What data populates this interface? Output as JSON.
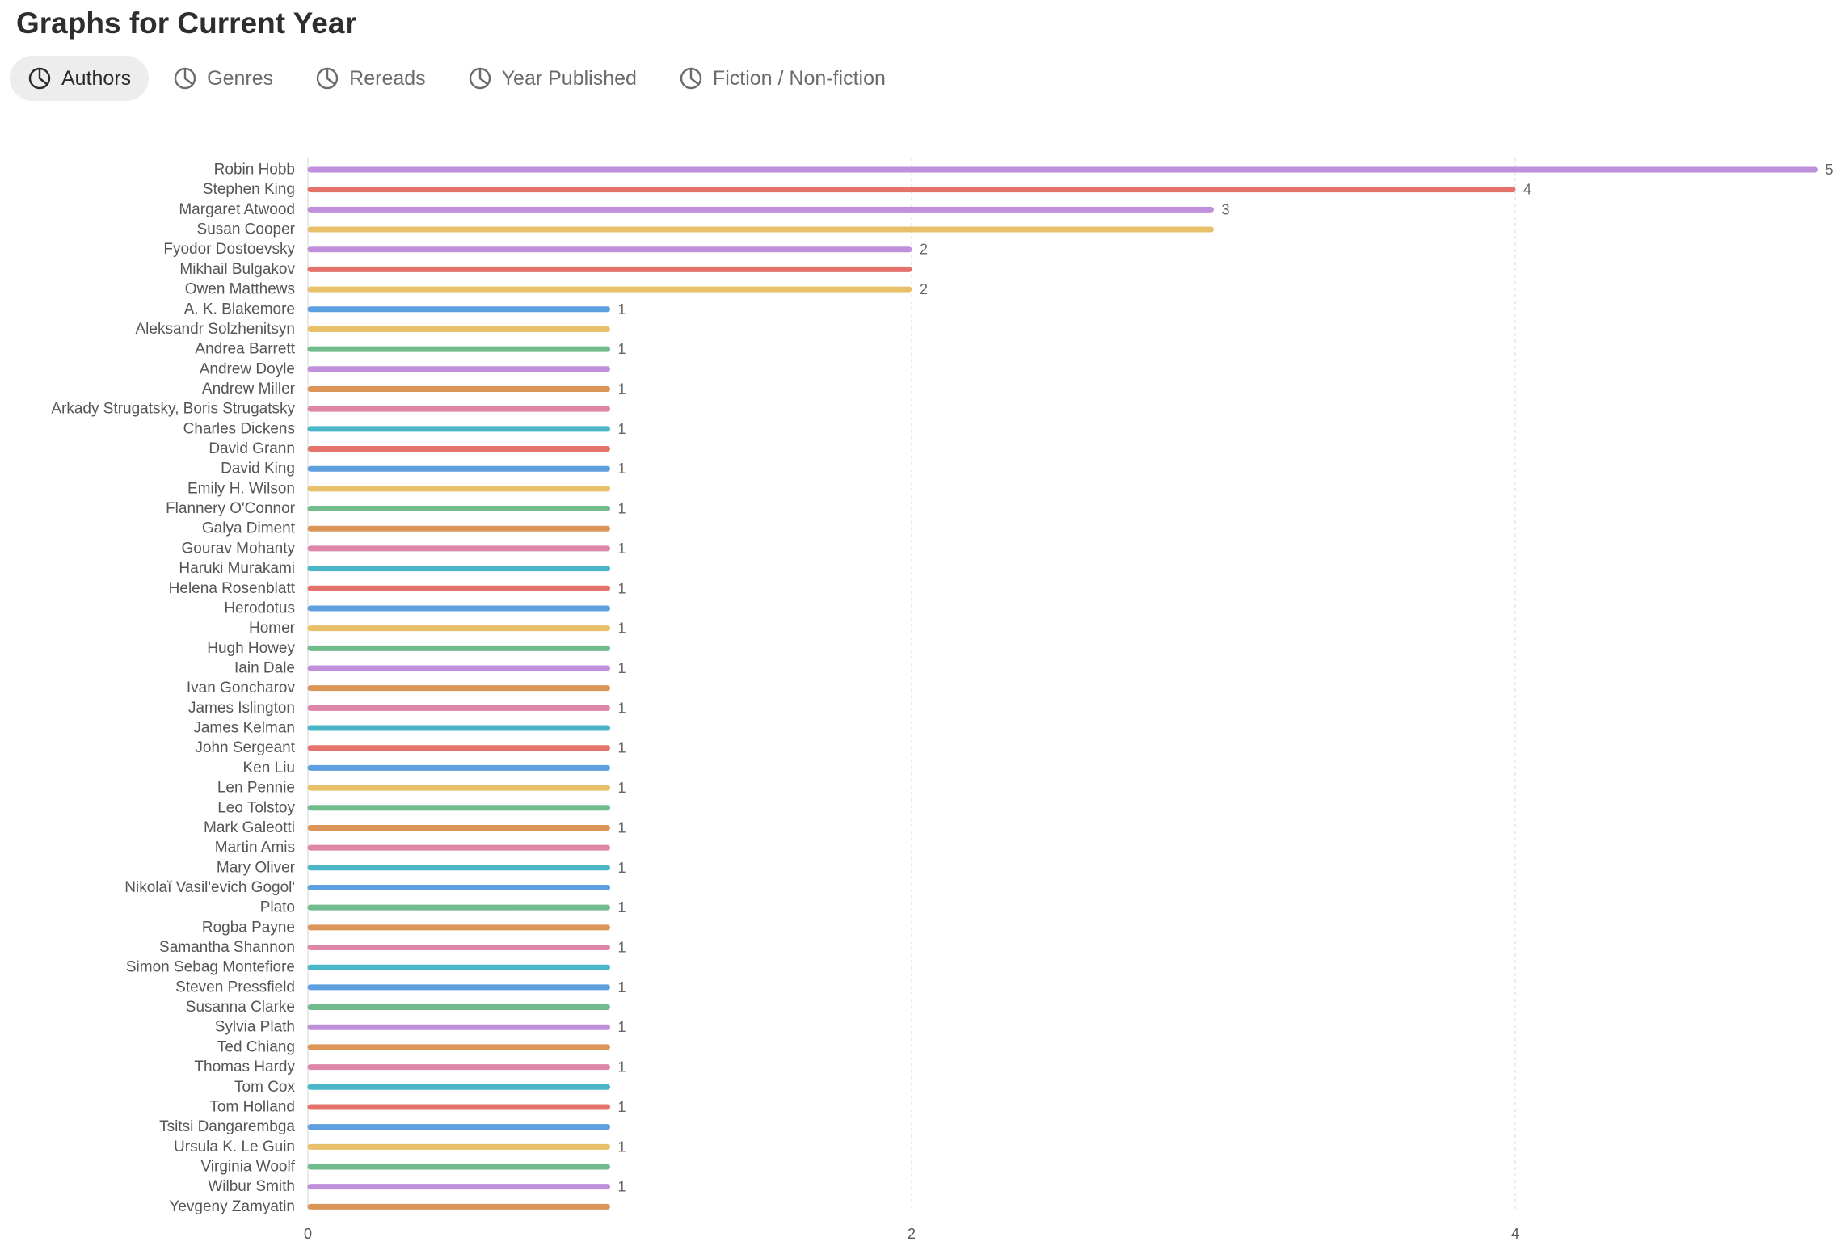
{
  "page": {
    "title": "Graphs for Current Year"
  },
  "tabs": [
    {
      "label": "Authors",
      "icon": "pie-chart-icon",
      "active": true
    },
    {
      "label": "Genres",
      "icon": "pie-chart-icon",
      "active": false
    },
    {
      "label": "Rereads",
      "icon": "pie-chart-icon",
      "active": false
    },
    {
      "label": "Year Published",
      "icon": "pie-chart-icon",
      "active": false
    },
    {
      "label": "Fiction / Non-fiction",
      "icon": "pie-chart-icon",
      "active": false
    }
  ],
  "chart_data": {
    "type": "bar",
    "orientation": "horizontal",
    "title": "",
    "xlabel": "",
    "ylabel": "",
    "xlim": [
      0,
      5
    ],
    "xticks": [
      "0",
      "2",
      "4"
    ],
    "grid": true,
    "palette": [
      "#c08fdc",
      "#e4736b",
      "#e8c069",
      "#5e9fe0",
      "#72bb8d",
      "#dc9558",
      "#de86a7",
      "#4ab6c8"
    ],
    "categories": [
      "Robin Hobb",
      "Stephen King",
      "Margaret Atwood",
      "Susan Cooper",
      "Fyodor Dostoevsky",
      "Mikhail Bulgakov",
      "Owen Matthews",
      "A. K. Blakemore",
      "Aleksandr Solzhenitsyn",
      "Andrea Barrett",
      "Andrew Doyle",
      "Andrew Miller",
      "Arkady Strugatsky, Boris Strugatsky",
      "Charles Dickens",
      "David Grann",
      "David King",
      "Emily H. Wilson",
      "Flannery O'Connor",
      "Galya Diment",
      "Gourav Mohanty",
      "Haruki Murakami",
      "Helena Rosenblatt",
      "Herodotus",
      "Homer",
      "Hugh Howey",
      "Iain Dale",
      "Ivan Goncharov",
      "James Islington",
      "James Kelman",
      "John Sergeant",
      "Ken Liu",
      "Len Pennie",
      "Leo Tolstoy",
      "Mark Galeotti",
      "Martin Amis",
      "Mary Oliver",
      "Nikolaĭ Vasilʹevich Gogolʹ",
      "Plato",
      "Rogba Payne",
      "Samantha Shannon",
      "Simon Sebag Montefiore",
      "Steven Pressfield",
      "Susanna Clarke",
      "Sylvia Plath",
      "Ted Chiang",
      "Thomas Hardy",
      "Tom Cox",
      "Tom Holland",
      "Tsitsi Dangarembga",
      "Ursula K. Le Guin",
      "Virginia Woolf",
      "Wilbur Smith",
      "Yevgeny Zamyatin"
    ],
    "values": [
      5,
      4,
      3,
      3,
      2,
      2,
      2,
      1,
      1,
      1,
      1,
      1,
      1,
      1,
      1,
      1,
      1,
      1,
      1,
      1,
      1,
      1,
      1,
      1,
      1,
      1,
      1,
      1,
      1,
      1,
      1,
      1,
      1,
      1,
      1,
      1,
      1,
      1,
      1,
      1,
      1,
      1,
      1,
      1,
      1,
      1,
      1,
      1,
      1,
      1,
      1,
      1,
      1
    ],
    "colors": [
      "#c08fdc",
      "#e4736b",
      "#c08fdc",
      "#e8c069",
      "#c08fdc",
      "#e4736b",
      "#e8c069",
      "#5e9fe0",
      "#e8c069",
      "#72bb8d",
      "#c08fdc",
      "#dc9558",
      "#de86a7",
      "#4ab6c8",
      "#e4736b",
      "#5e9fe0",
      "#e8c069",
      "#72bb8d",
      "#dc9558",
      "#de86a7",
      "#4ab6c8",
      "#e4736b",
      "#5e9fe0",
      "#e8c069",
      "#72bb8d",
      "#c08fdc",
      "#dc9558",
      "#de86a7",
      "#4ab6c8",
      "#e4736b",
      "#5e9fe0",
      "#e8c069",
      "#72bb8d",
      "#dc9558",
      "#de86a7",
      "#4ab6c8",
      "#5e9fe0",
      "#72bb8d",
      "#dc9558",
      "#de86a7",
      "#4ab6c8",
      "#5e9fe0",
      "#72bb8d",
      "#c08fdc",
      "#dc9558",
      "#de86a7",
      "#4ab6c8",
      "#e4736b",
      "#5e9fe0",
      "#e8c069",
      "#72bb8d",
      "#c08fdc",
      "#dc9558"
    ],
    "data_labels": [
      "5",
      "4",
      "3",
      "",
      "2",
      "",
      "2",
      "1",
      "",
      "1",
      "",
      "1",
      "",
      "1",
      "",
      "1",
      "",
      "1",
      "",
      "1",
      "",
      "1",
      "",
      "1",
      "",
      "1",
      "",
      "1",
      "",
      "1",
      "",
      "1",
      "",
      "1",
      "",
      "1",
      "",
      "1",
      "",
      "1",
      "",
      "1",
      "",
      "1",
      "",
      "1",
      "",
      "1",
      "",
      "1",
      "",
      "1",
      ""
    ]
  }
}
